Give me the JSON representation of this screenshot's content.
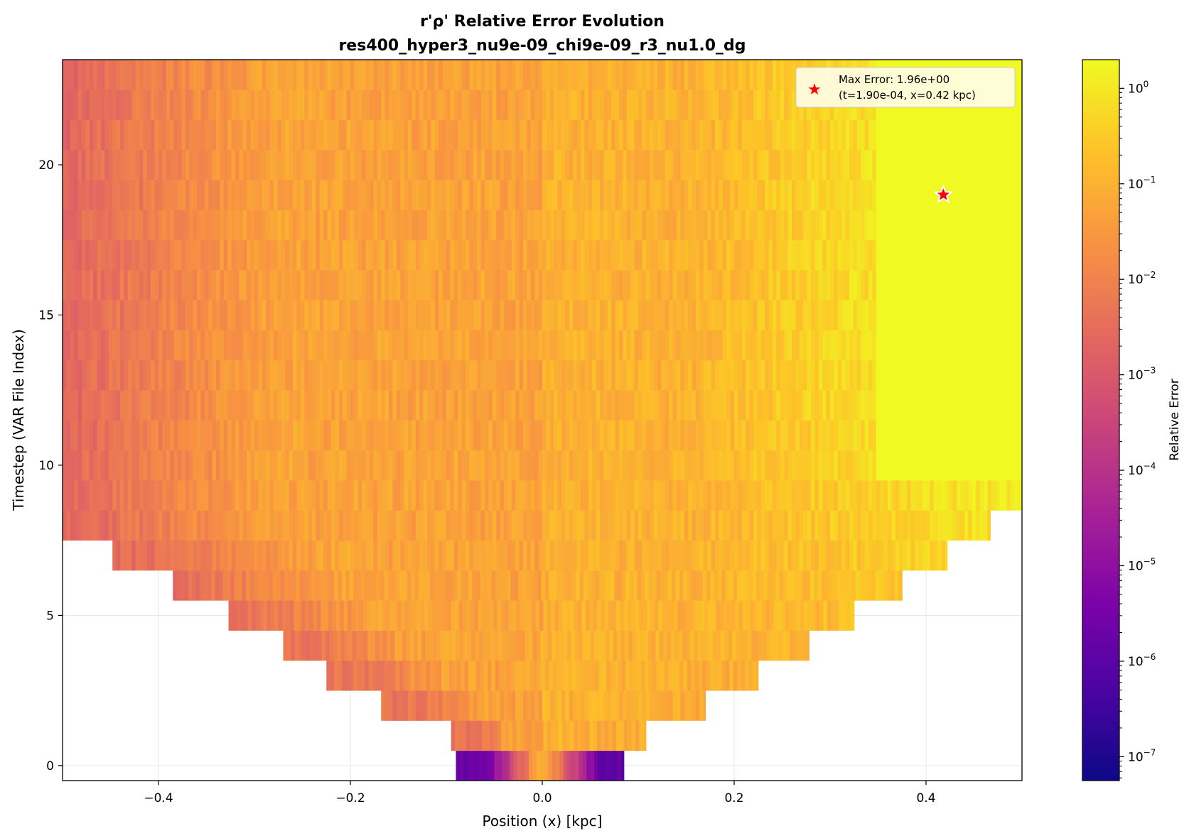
{
  "chart_data": {
    "type": "heatmap",
    "title_line1": "r'ρ' Relative Error Evolution",
    "title_line2": "res400_hyper3_nu9e-09_chi9e-09_r3_nu1.0_dg",
    "xlabel": "Position (x) [kpc]",
    "ylabel": "Timestep (VAR File Index)",
    "xlim": [
      -0.5,
      0.5
    ],
    "ylim": [
      -0.5,
      23.5
    ],
    "xticks": [
      -0.4,
      -0.2,
      0.0,
      0.2,
      0.4
    ],
    "xtick_labels": [
      "−0.4",
      "−0.2",
      "0.0",
      "0.2",
      "0.4"
    ],
    "yticks": [
      0,
      5,
      10,
      15,
      20
    ],
    "ytick_labels": [
      "0",
      "5",
      "10",
      "15",
      "20"
    ],
    "grid": true,
    "colormap": "plasma",
    "color_scale": "log",
    "colorbar": {
      "label": "Relative Error",
      "log_min": -7.25,
      "log_max": 0.3,
      "tick_exponents": [
        -7,
        -6,
        -5,
        -4,
        -3,
        -2,
        -1,
        0
      ],
      "tick_base": "10",
      "tick_labels": [
        "−7",
        "−6",
        "−5",
        "−4",
        "−3",
        "−2",
        "−1",
        "0"
      ]
    },
    "rows": [
      {
        "t": 0,
        "x_range": [
          -0.09,
          0.085
        ]
      },
      {
        "t": 1,
        "x_range": [
          -0.095,
          0.108
        ]
      },
      {
        "t": 2,
        "x_range": [
          -0.168,
          0.17
        ]
      },
      {
        "t": 3,
        "x_range": [
          -0.225,
          0.225
        ]
      },
      {
        "t": 4,
        "x_range": [
          -0.27,
          0.278
        ]
      },
      {
        "t": 5,
        "x_range": [
          -0.327,
          0.325
        ]
      },
      {
        "t": 6,
        "x_range": [
          -0.385,
          0.375
        ]
      },
      {
        "t": 7,
        "x_range": [
          -0.448,
          0.422
        ]
      },
      {
        "t": 8,
        "x_range": [
          -0.5,
          0.467
        ]
      },
      {
        "t": 9,
        "x_range": [
          -0.5,
          0.5
        ]
      },
      {
        "t": 10,
        "x_range": [
          -0.5,
          0.5
        ]
      },
      {
        "t": 11,
        "x_range": [
          -0.5,
          0.5
        ]
      },
      {
        "t": 12,
        "x_range": [
          -0.5,
          0.5
        ]
      },
      {
        "t": 13,
        "x_range": [
          -0.5,
          0.5
        ]
      },
      {
        "t": 14,
        "x_range": [
          -0.5,
          0.5
        ]
      },
      {
        "t": 15,
        "x_range": [
          -0.5,
          0.5
        ]
      },
      {
        "t": 16,
        "x_range": [
          -0.5,
          0.5
        ]
      },
      {
        "t": 17,
        "x_range": [
          -0.5,
          0.5
        ]
      },
      {
        "t": 18,
        "x_range": [
          -0.5,
          0.5
        ]
      },
      {
        "t": 19,
        "x_range": [
          -0.5,
          0.5
        ]
      },
      {
        "t": 20,
        "x_range": [
          -0.5,
          0.5
        ]
      },
      {
        "t": 21,
        "x_range": [
          -0.5,
          0.5
        ]
      },
      {
        "t": 22,
        "x_range": [
          -0.5,
          0.5
        ]
      },
      {
        "t": 23,
        "x_range": [
          -0.5,
          0.5
        ]
      }
    ],
    "max_marker": {
      "x": 0.418,
      "t": 19,
      "color": "#ff0000"
    },
    "legend": {
      "placement": "top-right",
      "line1": "Max Error: 1.96e+00",
      "line2": "(t=1.90e-04, x=0.42 kpc)"
    }
  }
}
